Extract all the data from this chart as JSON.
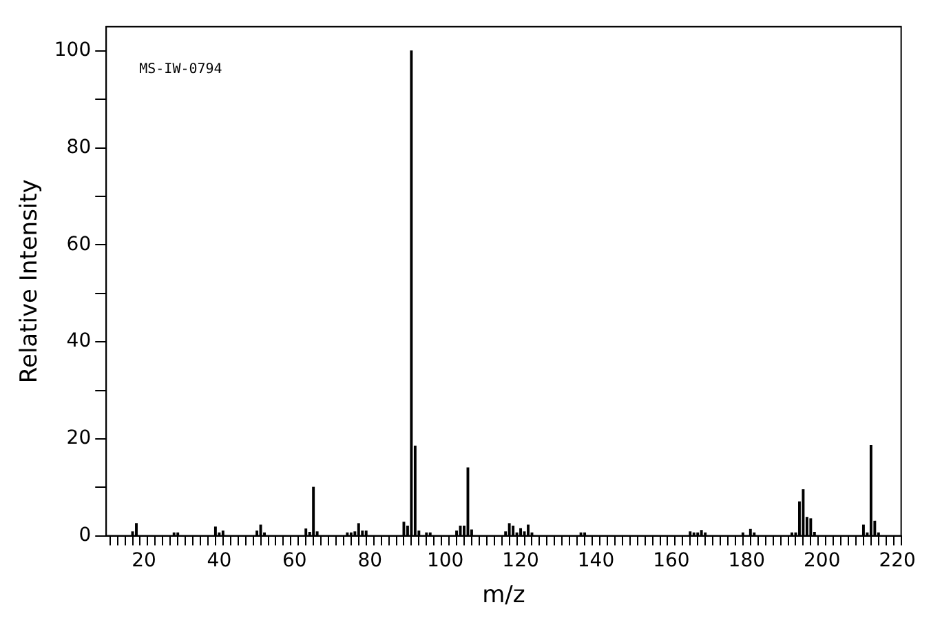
{
  "chart_data": {
    "type": "bar",
    "xlabel": "m/z",
    "ylabel": "Relative Intensity",
    "annotations": [
      "MS-IW-0794"
    ],
    "x": [
      17,
      18,
      28,
      29,
      39,
      40,
      41,
      50,
      51,
      52,
      63,
      64,
      65,
      66,
      74,
      75,
      76,
      77,
      78,
      79,
      89,
      90,
      91,
      92,
      93,
      95,
      96,
      103,
      104,
      105,
      106,
      107,
      116,
      117,
      118,
      119,
      120,
      121,
      122,
      123,
      136,
      137,
      165,
      166,
      167,
      168,
      169,
      179,
      181,
      182,
      192,
      193,
      194,
      195,
      196,
      197,
      198,
      211,
      212,
      213,
      214,
      215
    ],
    "series": [
      {
        "color": "#000000",
        "values": [
          0.8,
          2.5,
          0.6,
          0.6,
          1.8,
          0.6,
          1.0,
          1.0,
          2.2,
          0.6,
          1.4,
          0.7,
          10,
          0.8,
          0.6,
          0.6,
          0.8,
          2.5,
          1.0,
          1.0,
          2.8,
          2.0,
          100,
          18.5,
          1.0,
          0.6,
          0.6,
          1.0,
          2.0,
          2.0,
          14,
          1.2,
          0.8,
          2.5,
          2.0,
          0.6,
          1.5,
          0.8,
          2.2,
          0.6,
          0.6,
          0.6,
          0.8,
          0.6,
          0.6,
          1.1,
          0.6,
          0.6,
          1.3,
          0.6,
          0.6,
          0.6,
          7,
          9.5,
          3.8,
          3.5,
          0.7,
          2.2,
          0.6,
          18.6,
          3,
          0.6
        ]
      }
    ],
    "xlim": [
      10,
      221
    ],
    "ylim": [
      0,
      105
    ],
    "xticks": [
      {
        "value": 10,
        "label": null
      },
      {
        "value": 12,
        "label": null
      },
      {
        "value": 14,
        "label": null
      },
      {
        "value": 16,
        "label": null
      },
      {
        "value": 18,
        "label": null
      },
      20,
      {
        "value": 22,
        "label": null
      },
      {
        "value": 24,
        "label": null
      },
      {
        "value": 26,
        "label": null
      },
      {
        "value": 28,
        "label": null
      },
      {
        "value": 30,
        "label": null
      },
      {
        "value": 32,
        "label": null
      },
      {
        "value": 34,
        "label": null
      },
      {
        "value": 36,
        "label": null
      },
      {
        "value": 38,
        "label": null
      },
      40,
      {
        "value": 42,
        "label": null
      },
      {
        "value": 44,
        "label": null
      },
      {
        "value": 46,
        "label": null
      },
      {
        "value": 48,
        "label": null
      },
      {
        "value": 50,
        "label": null
      },
      {
        "value": 52,
        "label": null
      },
      {
        "value": 54,
        "label": null
      },
      {
        "value": 56,
        "label": null
      },
      {
        "value": 58,
        "label": null
      },
      60,
      {
        "value": 62,
        "label": null
      },
      {
        "value": 64,
        "label": null
      },
      {
        "value": 66,
        "label": null
      },
      {
        "value": 68,
        "label": null
      },
      {
        "value": 70,
        "label": null
      },
      {
        "value": 72,
        "label": null
      },
      {
        "value": 74,
        "label": null
      },
      {
        "value": 76,
        "label": null
      },
      {
        "value": 78,
        "label": null
      },
      80,
      {
        "value": 82,
        "label": null
      },
      {
        "value": 84,
        "label": null
      },
      {
        "value": 86,
        "label": null
      },
      {
        "value": 88,
        "label": null
      },
      {
        "value": 90,
        "label": null
      },
      {
        "value": 92,
        "label": null
      },
      {
        "value": 94,
        "label": null
      },
      {
        "value": 96,
        "label": null
      },
      {
        "value": 98,
        "label": null
      },
      100,
      {
        "value": 102,
        "label": null
      },
      {
        "value": 104,
        "label": null
      },
      {
        "value": 106,
        "label": null
      },
      {
        "value": 108,
        "label": null
      },
      {
        "value": 110,
        "label": null
      },
      {
        "value": 112,
        "label": null
      },
      {
        "value": 114,
        "label": null
      },
      {
        "value": 116,
        "label": null
      },
      {
        "value": 118,
        "label": null
      },
      120,
      {
        "value": 122,
        "label": null
      },
      {
        "value": 124,
        "label": null
      },
      {
        "value": 126,
        "label": null
      },
      {
        "value": 128,
        "label": null
      },
      {
        "value": 130,
        "label": null
      },
      {
        "value": 132,
        "label": null
      },
      {
        "value": 134,
        "label": null
      },
      {
        "value": 136,
        "label": null
      },
      {
        "value": 138,
        "label": null
      },
      140,
      {
        "value": 142,
        "label": null
      },
      {
        "value": 144,
        "label": null
      },
      {
        "value": 146,
        "label": null
      },
      {
        "value": 148,
        "label": null
      },
      {
        "value": 150,
        "label": null
      },
      {
        "value": 152,
        "label": null
      },
      {
        "value": 154,
        "label": null
      },
      {
        "value": 156,
        "label": null
      },
      {
        "value": 158,
        "label": null
      },
      160,
      {
        "value": 162,
        "label": null
      },
      {
        "value": 164,
        "label": null
      },
      {
        "value": 166,
        "label": null
      },
      {
        "value": 168,
        "label": null
      },
      {
        "value": 170,
        "label": null
      },
      {
        "value": 172,
        "label": null
      },
      {
        "value": 174,
        "label": null
      },
      {
        "value": 176,
        "label": null
      },
      {
        "value": 178,
        "label": null
      },
      180,
      {
        "value": 182,
        "label": null
      },
      {
        "value": 184,
        "label": null
      },
      {
        "value": 186,
        "label": null
      },
      {
        "value": 188,
        "label": null
      },
      {
        "value": 190,
        "label": null
      },
      {
        "value": 192,
        "label": null
      },
      {
        "value": 194,
        "label": null
      },
      {
        "value": 196,
        "label": null
      },
      {
        "value": 198,
        "label": null
      },
      200,
      {
        "value": 202,
        "label": null
      },
      {
        "value": 204,
        "label": null
      },
      {
        "value": 206,
        "label": null
      },
      {
        "value": 208,
        "label": null
      },
      {
        "value": 210,
        "label": null
      },
      {
        "value": 212,
        "label": null
      },
      {
        "value": 214,
        "label": null
      },
      {
        "value": 216,
        "label": null
      },
      {
        "value": 218,
        "label": null
      },
      220
    ],
    "yticks": [
      0,
      {
        "value": 10,
        "label": null
      },
      20,
      {
        "value": 30,
        "label": null
      },
      40,
      {
        "value": 50,
        "label": null
      },
      60,
      {
        "value": 70,
        "label": null
      },
      80,
      {
        "value": 90,
        "label": null
      },
      100
    ],
    "grid": false,
    "legend": false
  }
}
